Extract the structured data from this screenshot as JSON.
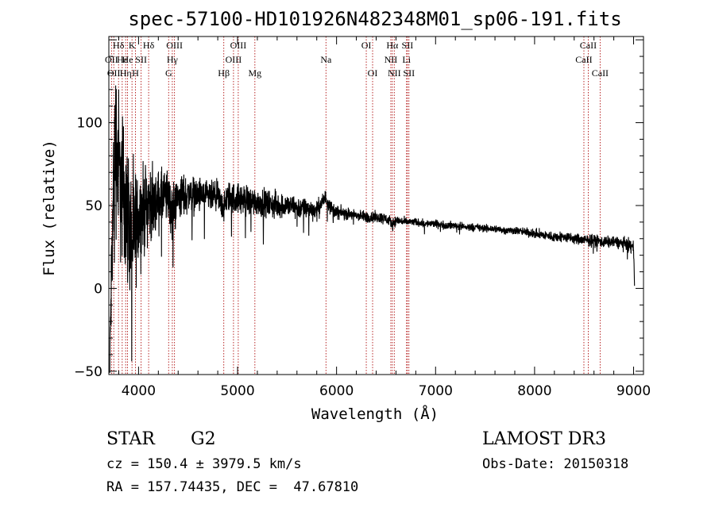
{
  "chart_data": {
    "type": "line",
    "title": "spec-57100-HD101926N482348M01_sp06-191.fits",
    "xlabel": "Wavelength (Å)",
    "ylabel": "Flux (relative)",
    "xlim": [
      3700,
      9100
    ],
    "ylim": [
      -52,
      152
    ],
    "xticks": [
      {
        "value": 4000,
        "label": "4000"
      },
      {
        "value": 5000,
        "label": "5000"
      },
      {
        "value": 6000,
        "label": "6000"
      },
      {
        "value": 7000,
        "label": "7000"
      },
      {
        "value": 8000,
        "label": "8000"
      },
      {
        "value": 9000,
        "label": "9000"
      }
    ],
    "yticks": [
      {
        "value": -50,
        "label": "−50"
      },
      {
        "value": 0,
        "label": "0"
      },
      {
        "value": 50,
        "label": "50"
      },
      {
        "value": 100,
        "label": "100"
      }
    ],
    "grid": false,
    "spectrum_envelope": {
      "x": [
        3710,
        3740,
        3760,
        3790,
        3820,
        3850,
        3880,
        3910,
        3940,
        3970,
        4000,
        4050,
        4100,
        4150,
        4200,
        4300,
        4340,
        4400,
        4500,
        4600,
        4700,
        4800,
        4861,
        4900,
        5000,
        5100,
        5200,
        5300,
        5400,
        5500,
        5600,
        5700,
        5800,
        5890,
        5950,
        6000,
        6100,
        6200,
        6300,
        6400,
        6500,
        6563,
        6600,
        6700,
        6800,
        6900,
        7000,
        7100,
        7200,
        7300,
        7400,
        7500,
        7600,
        7700,
        7800,
        7900,
        8000,
        8100,
        8200,
        8300,
        8400,
        8500,
        8600,
        8700,
        8800,
        8900,
        8950,
        9000,
        9010
      ],
      "y": [
        -40,
        40,
        95,
        78,
        62,
        58,
        48,
        38,
        30,
        35,
        42,
        48,
        52,
        50,
        53,
        55,
        46,
        55,
        57,
        56,
        55,
        55,
        48,
        55,
        54,
        53,
        52,
        51,
        50,
        50,
        49,
        48,
        47,
        55,
        48,
        46,
        45,
        44,
        43,
        43,
        42,
        39,
        41,
        40,
        40,
        39,
        39,
        38,
        38,
        37,
        37,
        36,
        36,
        35,
        35,
        34,
        33,
        32,
        31,
        31,
        30,
        29,
        29,
        28,
        28,
        27,
        26,
        24,
        0
      ],
      "noise_amplitude": [
        5,
        45,
        45,
        42,
        40,
        38,
        36,
        35,
        32,
        30,
        25,
        22,
        20,
        17,
        15,
        14,
        14,
        12,
        10,
        9,
        8,
        8,
        8,
        8,
        8,
        8,
        7,
        7,
        7,
        6,
        6,
        5,
        5,
        4,
        4,
        3.5,
        3,
        3,
        3,
        3,
        3,
        3,
        2.5,
        2.2,
        2,
        2,
        2,
        2,
        2,
        2,
        2,
        2,
        2,
        2,
        2,
        2.2,
        2.4,
        2.5,
        2.6,
        2.7,
        2.8,
        3,
        3,
        3,
        3,
        3.2,
        3.5,
        3.5,
        0
      ]
    },
    "spectral_lines": [
      {
        "wl": 3727,
        "label": "OII",
        "row": 2
      },
      {
        "wl": 3750,
        "label": "OII",
        "row": 3
      },
      {
        "wl": 3798,
        "label": "Hδ",
        "row": 1
      },
      {
        "wl": 3835,
        "label": "Hε",
        "row": 2
      },
      {
        "wl": 3870,
        "label": "Hη",
        "row": 3
      },
      {
        "wl": 3889,
        "label": "He",
        "row": 2
      },
      {
        "wl": 3934,
        "label": "K",
        "row": 1
      },
      {
        "wl": 3969,
        "label": "H",
        "row": 3
      },
      {
        "wl": 4026,
        "label": "SII",
        "row": 2
      },
      {
        "wl": 4102,
        "label": "Hδ",
        "row": 1
      },
      {
        "wl": 4304,
        "label": "G",
        "row": 3
      },
      {
        "wl": 4341,
        "label": "Hγ",
        "row": 2
      },
      {
        "wl": 4363,
        "label": "OIII",
        "row": 1
      },
      {
        "wl": 4861,
        "label": "Hβ",
        "row": 3
      },
      {
        "wl": 4959,
        "label": "OIII",
        "row": 2
      },
      {
        "wl": 5007,
        "label": "OIII",
        "row": 1
      },
      {
        "wl": 5175,
        "label": "Mg",
        "row": 3
      },
      {
        "wl": 5893,
        "label": "Na",
        "row": 2
      },
      {
        "wl": 6300,
        "label": "OI",
        "row": 1
      },
      {
        "wl": 6364,
        "label": "OI",
        "row": 3
      },
      {
        "wl": 6548,
        "label": "NII",
        "row": 2
      },
      {
        "wl": 6563,
        "label": "Hα",
        "row": 1
      },
      {
        "wl": 6583,
        "label": "NII",
        "row": 3
      },
      {
        "wl": 6707,
        "label": "Li",
        "row": 2
      },
      {
        "wl": 6716,
        "label": "SII",
        "row": 1
      },
      {
        "wl": 6731,
        "label": "SII",
        "row": 3
      },
      {
        "wl": 8498,
        "label": "CaII",
        "row": 2
      },
      {
        "wl": 8542,
        "label": "CaII",
        "row": 1
      },
      {
        "wl": 8662,
        "label": "CaII",
        "row": 3
      }
    ]
  },
  "info": {
    "object_class": "STAR",
    "subclass": "G2",
    "survey": "LAMOST DR3",
    "cz": "cz = 150.4 ± 3979.5 km/s",
    "obs_date": "Obs-Date: 20150318",
    "coords": "RA = 157.74435, DEC =  47.67810"
  },
  "colors": {
    "spectrum": "#000000",
    "line_marker": "#b01010",
    "axes": "#000000",
    "background": "#ffffff"
  }
}
